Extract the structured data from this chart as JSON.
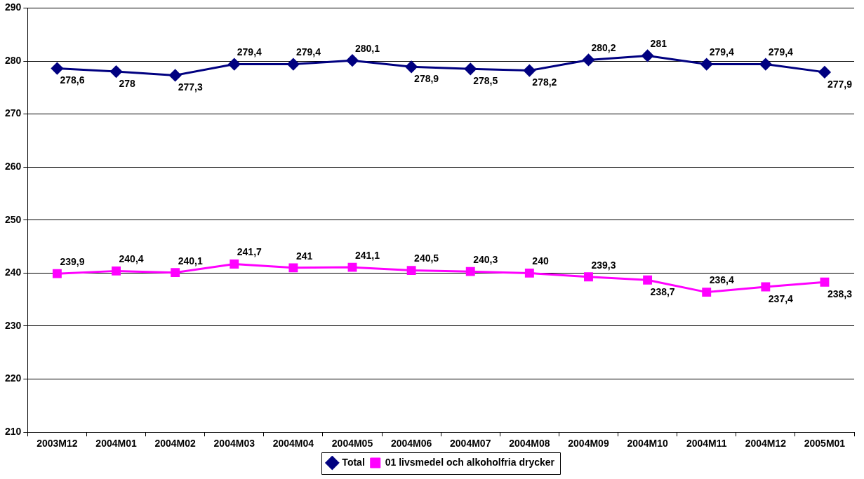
{
  "chart_data": {
    "type": "line",
    "categories": [
      "2003M12",
      "2004M01",
      "2004M02",
      "2004M03",
      "2004M04",
      "2004M05",
      "2004M06",
      "2004M07",
      "2004M08",
      "2004M09",
      "2004M10",
      "2004M11",
      "2004M12",
      "2005M01"
    ],
    "series": [
      {
        "name": "Total",
        "color": "#000080",
        "marker": "diamond",
        "values": [
          278.6,
          278,
          277.3,
          279.4,
          279.4,
          280.1,
          278.9,
          278.5,
          278.2,
          280.2,
          281,
          279.4,
          279.4,
          277.9
        ],
        "value_labels": [
          "278,6",
          "278",
          "277,3",
          "279,4",
          "279,4",
          "280,1",
          "278,9",
          "278,5",
          "278,2",
          "280,2",
          "281",
          "279,4",
          "279,4",
          "277,9"
        ]
      },
      {
        "name": "01 livsmedel och alkoholfria drycker",
        "color": "#ff00ff",
        "marker": "square",
        "values": [
          239.9,
          240.4,
          240.1,
          241.7,
          241,
          241.1,
          240.5,
          240.3,
          240,
          239.3,
          238.7,
          236.4,
          237.4,
          238.3
        ],
        "value_labels": [
          "239,9",
          "240,4",
          "240,1",
          "241,7",
          "241",
          "241,1",
          "240,5",
          "240,3",
          "240",
          "239,3",
          "238,7",
          "236,4",
          "237,4",
          "238,3"
        ]
      }
    ],
    "ylim": [
      210,
      290
    ],
    "yticks": [
      210,
      220,
      230,
      240,
      250,
      260,
      270,
      280,
      290
    ],
    "grid": "y",
    "legend": "bottom",
    "line_style": "solid"
  }
}
